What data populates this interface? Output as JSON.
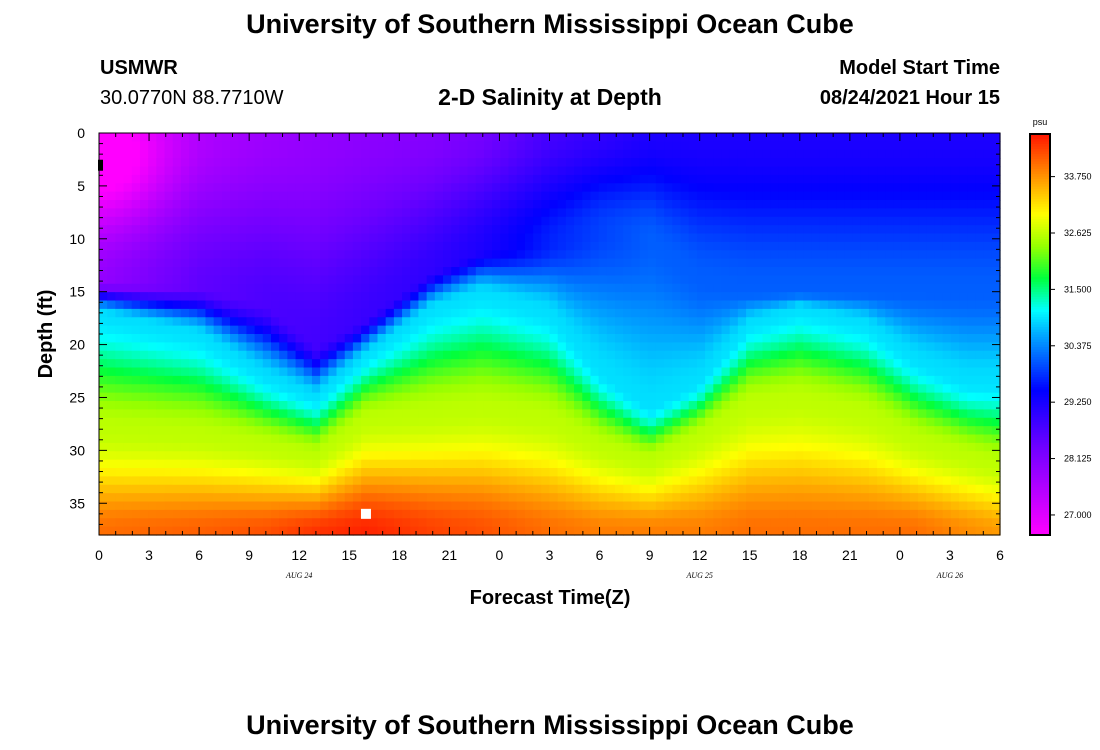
{
  "header": {
    "title": "University of Southern Mississippi Ocean Cube",
    "station": "USMWR",
    "coords": "30.0770N  88.7710W",
    "subtitle": "2-D Salinity at Depth",
    "model_label": "Model Start Time",
    "model_time": "08/24/2021 Hour 15"
  },
  "footer": {
    "title": "University of Southern Mississippi Ocean Cube"
  },
  "chart_data": {
    "type": "heatmap",
    "title": "2-D Salinity at Depth",
    "xlabel": "Forecast Time(Z)",
    "ylabel": "Depth (ft)",
    "x_ticks": [
      "0",
      "3",
      "6",
      "9",
      "12",
      "15",
      "18",
      "21",
      "0",
      "3",
      "6",
      "9",
      "12",
      "15",
      "18",
      "21",
      "0",
      "3",
      "6"
    ],
    "x_range_hours": [
      0,
      54
    ],
    "date_labels": [
      {
        "text": "AUG 24",
        "hour": 12
      },
      {
        "text": "AUG 25",
        "hour": 36
      },
      {
        "text": "AUG 26",
        "hour": 51
      }
    ],
    "y_ticks": [
      0,
      5,
      10,
      15,
      20,
      25,
      30,
      35
    ],
    "y_range_ft": [
      0,
      38
    ],
    "y_inverted": true,
    "colorbar": {
      "unit": "psu",
      "ticks": [
        "27.000",
        "28.125",
        "29.250",
        "30.375",
        "31.500",
        "32.625",
        "33.750"
      ],
      "range": [
        26.6,
        34.6
      ]
    },
    "salinity_profile_hours": [
      0,
      6,
      10,
      13,
      16,
      20,
      23,
      27,
      30,
      33,
      36,
      39,
      42,
      46,
      49,
      52,
      54
    ],
    "fresh_layer_depth_ft": [
      14.0,
      14.5,
      16.0,
      20.0,
      17.5,
      13.0,
      11.0,
      10.5,
      9.0,
      10.0,
      14.0,
      15.0,
      15.0,
      15.0,
      15.0,
      15.0,
      15.0
    ],
    "halocline_depth_ft": [
      17.0,
      19.0,
      23.0,
      25.0,
      21.0,
      16.5,
      15.0,
      17.0,
      22.5,
      26.0,
      23.5,
      18.0,
      16.5,
      18.0,
      21.5,
      23.5,
      23.5
    ],
    "bottom_layer_depth_ft": [
      28.0,
      28.5,
      29.5,
      30.5,
      27.0,
      26.5,
      26.0,
      27.0,
      29.5,
      31.0,
      28.5,
      25.5,
      25.0,
      26.5,
      29.0,
      30.5,
      31.5
    ],
    "surface_salinity_psu": [
      27.0,
      27.6,
      27.8,
      27.9,
      28.0,
      28.1,
      28.3,
      28.8,
      29.0,
      29.2,
      29.2,
      29.2,
      29.2,
      29.2,
      29.2,
      29.2,
      29.2
    ],
    "bottom_salinity_psu": [
      34.0,
      34.1,
      34.2,
      34.4,
      34.5,
      34.3,
      34.2,
      34.0,
      33.9,
      33.9,
      33.9,
      34.0,
      34.0,
      34.0,
      34.0,
      33.8,
      33.7
    ],
    "markers": [
      {
        "shape": "square",
        "color": "#ffffff",
        "hour": 16,
        "depth_ft": 36
      },
      {
        "shape": "bar",
        "color": "#000000",
        "hour": 0,
        "depth_ft": 3
      }
    ]
  }
}
